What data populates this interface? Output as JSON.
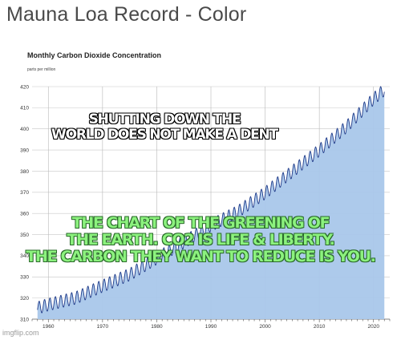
{
  "page": {
    "title": "Mauna Loa Record - Color",
    "watermark": "imgflip.com"
  },
  "overlay": {
    "black_lines": [
      "SHUTTING DOWN THE",
      "WORLD DOES NOT MAKE A DENT"
    ],
    "green_lines": [
      "THE CHART OF THE GREENING OF",
      "THE EARTH. CO2 IS LIFE & LIBERTY.",
      "THE CARBON THEY WANT TO REDUCE IS YOU."
    ]
  },
  "chart_data": {
    "type": "area",
    "title": "Monthly Carbon Dioxide Concentration",
    "ylabel": "parts per million",
    "xlabel": "",
    "xlim": [
      1957,
      2023
    ],
    "ylim": [
      310,
      420
    ],
    "x_ticks": [
      1960,
      1970,
      1980,
      1990,
      2000,
      2010,
      2020
    ],
    "y_ticks": [
      310,
      320,
      330,
      340,
      350,
      360,
      370,
      380,
      390,
      400,
      410,
      420
    ],
    "grid": true,
    "series": [
      {
        "x": [
          1958,
          1960,
          1965,
          1970,
          1975,
          1980,
          1985,
          1990,
          1995,
          2000,
          2005,
          2010,
          2015,
          2020,
          2022
        ],
        "values": [
          315.3,
          316.9,
          320.0,
          325.7,
          331.1,
          338.8,
          346.4,
          354.4,
          360.9,
          369.7,
          379.8,
          389.9,
          401.0,
          414.2,
          418.5
        ],
        "seasonal_amplitude": 3
      }
    ],
    "colors": {
      "fill": "#a9c7ea",
      "line": "#1f3b8a",
      "grid": "#c8c8c8"
    }
  }
}
